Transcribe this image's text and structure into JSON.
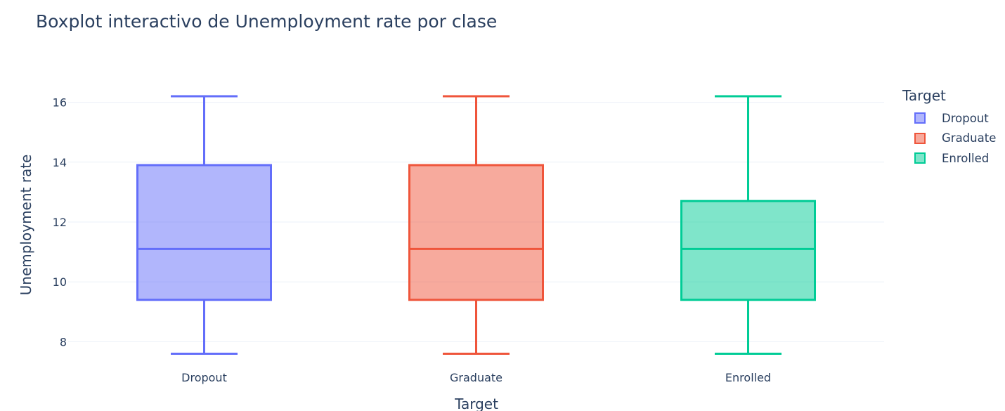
{
  "chart_data": {
    "type": "box",
    "title": "Boxplot interactivo de Unemployment rate por clase",
    "xlabel": "Target",
    "ylabel": "Unemployment rate",
    "categories": [
      "Dropout",
      "Graduate",
      "Enrolled"
    ],
    "ylim": [
      7.4,
      16.6
    ],
    "yticks": [
      8,
      10,
      12,
      14,
      16
    ],
    "grid": true,
    "legend": {
      "title": "Target",
      "placement": "top-right"
    },
    "series": [
      {
        "name": "Dropout",
        "color": "#636efa",
        "min": 7.6,
        "q1": 9.4,
        "median": 11.1,
        "q3": 13.9,
        "max": 16.2
      },
      {
        "name": "Graduate",
        "color": "#EF553B",
        "min": 7.6,
        "q1": 9.4,
        "median": 11.1,
        "q3": 13.9,
        "max": 16.2
      },
      {
        "name": "Enrolled",
        "color": "#00cc96",
        "min": 7.6,
        "q1": 9.4,
        "median": 11.1,
        "q3": 12.7,
        "max": 16.2
      }
    ]
  }
}
